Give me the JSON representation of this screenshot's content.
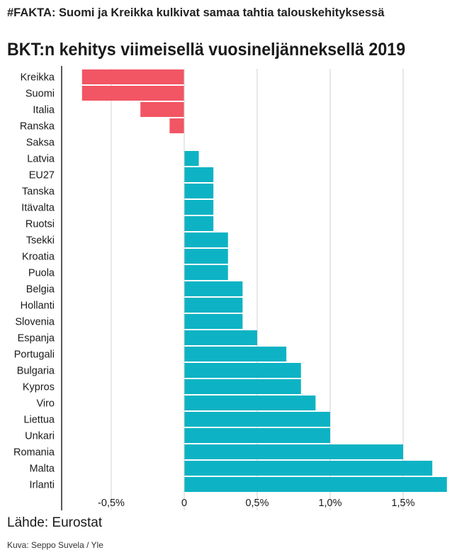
{
  "headline": "#FAKTA: Suomi ja Kreikka kulkivat samaa tahtia talouskehityksessä",
  "source": "Lähde: Eurostat",
  "credit": "Kuva: Seppo Suvela / Yle",
  "colors": {
    "negative": "#f25563",
    "positive": "#0db3c4",
    "grid": "#d0d0d0",
    "axis": "#222222"
  },
  "chart_data": {
    "type": "bar",
    "orientation": "horizontal",
    "title": "BKT:n kehitys viimeisellä vuosineljänneksellä 2019",
    "xlabel": "",
    "ylabel": "",
    "xlim": [
      -0.8,
      1.85
    ],
    "xticks": [
      -0.5,
      0,
      0.5,
      1.0,
      1.5
    ],
    "xtick_labels": [
      "-0,5%",
      "0",
      "0,5%",
      "1,0%",
      "1,5%"
    ],
    "grid": true,
    "categories": [
      "Kreikka",
      "Suomi",
      "Italia",
      "Ranska",
      "Saksa",
      "Latvia",
      "EU27",
      "Tanska",
      "Itävalta",
      "Ruotsi",
      "Tsekki",
      "Kroatia",
      "Puola",
      "Belgia",
      "Hollanti",
      "Slovenia",
      "Espanja",
      "Portugali",
      "Bulgaria",
      "Kypros",
      "Viro",
      "Liettua",
      "Unkari",
      "Romania",
      "Malta",
      "Irlanti"
    ],
    "values": [
      -0.7,
      -0.7,
      -0.3,
      -0.1,
      0.0,
      0.1,
      0.2,
      0.2,
      0.2,
      0.2,
      0.3,
      0.3,
      0.3,
      0.4,
      0.4,
      0.4,
      0.5,
      0.7,
      0.8,
      0.8,
      0.9,
      1.0,
      1.0,
      1.5,
      1.7,
      1.8
    ]
  }
}
